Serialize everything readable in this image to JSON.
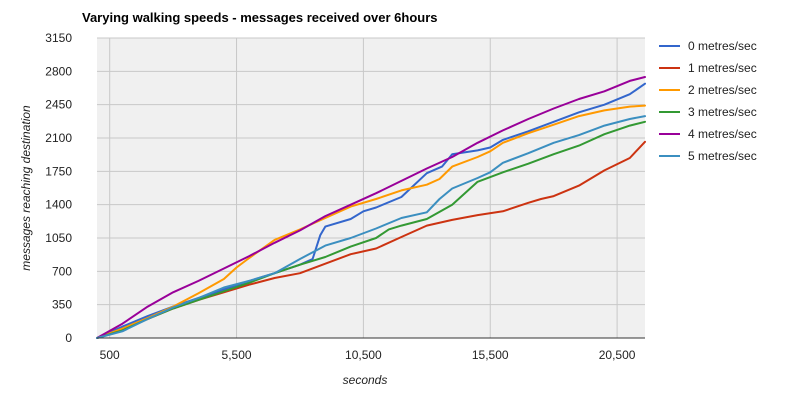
{
  "chart_data": {
    "type": "line",
    "title": "Varying walking speeds - messages received over 6hours",
    "xlabel": "seconds",
    "ylabel": "messages reaching destination",
    "xlim": [
      0,
      21600
    ],
    "ylim": [
      0,
      3150
    ],
    "x_ticks": [
      500,
      5500,
      10500,
      15500,
      20500
    ],
    "x_tick_labels": [
      "500",
      "5,500",
      "10,500",
      "15,500",
      "20,500"
    ],
    "y_ticks": [
      0,
      350,
      700,
      1050,
      1400,
      1750,
      2100,
      2450,
      2800,
      3150
    ],
    "y_tick_labels": [
      "0",
      "350",
      "700",
      "1050",
      "1400",
      "1750",
      "2100",
      "2450",
      "2800",
      "3150"
    ],
    "grid": true,
    "legend_position": "right",
    "series": [
      {
        "name": "0 metres/sec",
        "color": "#3366cc",
        "x": [
          0,
          1000,
          2000,
          3000,
          4000,
          5000,
          6000,
          7000,
          8000,
          8500,
          8800,
          9000,
          10000,
          10500,
          11000,
          12000,
          13000,
          13600,
          14000,
          15000,
          15500,
          16000,
          17000,
          18000,
          19000,
          20000,
          21000,
          21600
        ],
        "y": [
          0,
          120,
          230,
          330,
          420,
          510,
          600,
          680,
          770,
          830,
          1080,
          1170,
          1250,
          1330,
          1370,
          1480,
          1730,
          1800,
          1930,
          1970,
          2000,
          2080,
          2170,
          2270,
          2370,
          2450,
          2560,
          2670
        ]
      },
      {
        "name": "1 metres/sec",
        "color": "#cc3311",
        "x": [
          0,
          1000,
          2000,
          3000,
          4000,
          5000,
          6000,
          7000,
          8000,
          9000,
          10000,
          11000,
          12000,
          13000,
          14000,
          15000,
          16000,
          17000,
          17500,
          18000,
          19000,
          20000,
          21000,
          21600
        ],
        "y": [
          0,
          90,
          200,
          310,
          400,
          480,
          560,
          630,
          680,
          780,
          880,
          940,
          1060,
          1180,
          1240,
          1290,
          1330,
          1420,
          1460,
          1490,
          1600,
          1760,
          1890,
          2060
        ]
      },
      {
        "name": "2 metres/sec",
        "color": "#ff9900",
        "x": [
          0,
          1000,
          2000,
          3000,
          4000,
          5000,
          5500,
          6000,
          7000,
          8000,
          9000,
          10000,
          11000,
          12000,
          13000,
          13500,
          14000,
          15000,
          15500,
          16000,
          17000,
          18000,
          19000,
          20000,
          21000,
          21600
        ],
        "y": [
          0,
          100,
          210,
          330,
          470,
          620,
          740,
          840,
          1030,
          1140,
          1260,
          1380,
          1460,
          1550,
          1610,
          1670,
          1800,
          1900,
          1960,
          2050,
          2150,
          2240,
          2330,
          2390,
          2430,
          2440
        ]
      },
      {
        "name": "3 metres/sec",
        "color": "#339933",
        "x": [
          0,
          1000,
          2000,
          3000,
          4000,
          5000,
          6000,
          7000,
          8000,
          9000,
          10000,
          11000,
          11500,
          12000,
          13000,
          14000,
          14500,
          15000,
          16000,
          17000,
          18000,
          19000,
          20000,
          21000,
          21600
        ],
        "y": [
          0,
          80,
          200,
          310,
          400,
          490,
          580,
          680,
          770,
          850,
          960,
          1050,
          1140,
          1180,
          1250,
          1400,
          1520,
          1640,
          1740,
          1830,
          1930,
          2020,
          2140,
          2230,
          2270
        ]
      },
      {
        "name": "4 metres/sec",
        "color": "#990099",
        "x": [
          0,
          1000,
          2000,
          3000,
          4000,
          5000,
          6000,
          7000,
          8000,
          9000,
          10000,
          11000,
          12000,
          13000,
          14000,
          15000,
          16000,
          17000,
          18000,
          19000,
          20000,
          21000,
          21600
        ],
        "y": [
          0,
          150,
          330,
          480,
          600,
          730,
          860,
          1000,
          1130,
          1280,
          1400,
          1520,
          1650,
          1780,
          1900,
          2050,
          2180,
          2300,
          2410,
          2510,
          2590,
          2700,
          2740
        ]
      },
      {
        "name": "5 metres/sec",
        "color": "#3b8fc0",
        "x": [
          0,
          1000,
          2000,
          3000,
          4000,
          5000,
          6000,
          7000,
          8000,
          9000,
          10000,
          11000,
          12000,
          13000,
          13500,
          14000,
          15000,
          15500,
          16000,
          17000,
          18000,
          19000,
          20000,
          21000,
          21600
        ],
        "y": [
          0,
          70,
          200,
          320,
          420,
          530,
          600,
          680,
          830,
          970,
          1050,
          1150,
          1260,
          1320,
          1460,
          1570,
          1680,
          1740,
          1840,
          1940,
          2050,
          2130,
          2230,
          2300,
          2330
        ]
      }
    ]
  }
}
